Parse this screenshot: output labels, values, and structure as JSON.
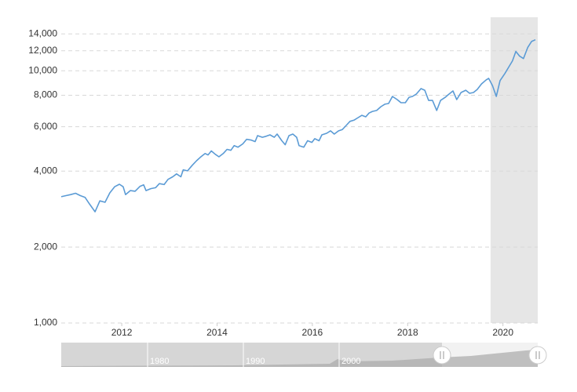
{
  "chart_data": {
    "type": "line",
    "log_scale": true,
    "grid": true,
    "color": "#5b9bd5",
    "highlight_x": [
      2019.74,
      2020.73
    ],
    "highlight_color": "#e6e6e6",
    "xlim": [
      2010.73,
      2020.73
    ],
    "xticks": [
      2012,
      2014,
      2016,
      2018,
      2020
    ],
    "ylim": [
      1000,
      16300
    ],
    "yticks": [
      {
        "value": 1000,
        "label": "1,000"
      },
      {
        "value": 2000,
        "label": "2,000"
      },
      {
        "value": 4000,
        "label": "4,000"
      },
      {
        "value": 6000,
        "label": "6,000"
      },
      {
        "value": 8000,
        "label": "8,000"
      },
      {
        "value": 10000,
        "label": "10,000"
      },
      {
        "value": 12000,
        "label": "12,000"
      },
      {
        "value": 14000,
        "label": "14,000"
      }
    ],
    "navigator_labels": [
      "1980",
      "1990",
      "2000"
    ],
    "x": [
      2010.73,
      2010.83,
      2010.93,
      2011.03,
      2011.13,
      2011.23,
      2011.32,
      2011.44,
      2011.54,
      2011.65,
      2011.75,
      2011.85,
      2011.95,
      2012.03,
      2012.08,
      2012.18,
      2012.28,
      2012.38,
      2012.46,
      2012.51,
      2012.61,
      2012.71,
      2012.79,
      2012.89,
      2012.97,
      2013.07,
      2013.15,
      2013.24,
      2013.29,
      2013.38,
      2013.48,
      2013.57,
      2013.66,
      2013.75,
      2013.81,
      2013.88,
      2013.96,
      2014.04,
      2014.13,
      2014.21,
      2014.29,
      2014.36,
      2014.44,
      2014.54,
      2014.62,
      2014.72,
      2014.8,
      2014.85,
      2014.95,
      2015.03,
      2015.11,
      2015.2,
      2015.26,
      2015.36,
      2015.43,
      2015.51,
      2015.59,
      2015.67,
      2015.72,
      2015.82,
      2015.9,
      2015.99,
      2016.05,
      2016.14,
      2016.2,
      2016.3,
      2016.38,
      2016.46,
      2016.55,
      2016.63,
      2016.71,
      2016.79,
      2016.88,
      2016.96,
      2017.04,
      2017.12,
      2017.19,
      2017.26,
      2017.35,
      2017.44,
      2017.52,
      2017.6,
      2017.68,
      2017.78,
      2017.86,
      2017.95,
      2018.03,
      2018.1,
      2018.18,
      2018.28,
      2018.36,
      2018.44,
      2018.52,
      2018.61,
      2018.69,
      2018.79,
      2018.85,
      2018.95,
      2019.03,
      2019.12,
      2019.22,
      2019.3,
      2019.38,
      2019.46,
      2019.55,
      2019.65,
      2019.7,
      2019.78,
      2019.86,
      2019.94,
      2020.04,
      2020.12,
      2020.2,
      2020.27,
      2020.35,
      2020.43,
      2020.52,
      2020.6,
      2020.68
    ],
    "values": [
      3167,
      3200,
      3230,
      3270,
      3200,
      3150,
      2970,
      2760,
      3050,
      3010,
      3280,
      3470,
      3550,
      3470,
      3230,
      3350,
      3330,
      3480,
      3530,
      3350,
      3410,
      3440,
      3570,
      3540,
      3710,
      3800,
      3900,
      3800,
      4050,
      4010,
      4220,
      4400,
      4560,
      4700,
      4640,
      4810,
      4670,
      4560,
      4700,
      4880,
      4840,
      5050,
      4980,
      5130,
      5350,
      5310,
      5240,
      5530,
      5450,
      5500,
      5570,
      5450,
      5610,
      5280,
      5090,
      5530,
      5610,
      5450,
      5050,
      4980,
      5280,
      5200,
      5380,
      5280,
      5570,
      5650,
      5780,
      5610,
      5780,
      5850,
      6070,
      6300,
      6380,
      6520,
      6660,
      6570,
      6800,
      6900,
      6960,
      7210,
      7370,
      7420,
      7910,
      7690,
      7470,
      7470,
      7850,
      7910,
      8080,
      8500,
      8370,
      7630,
      7630,
      6960,
      7630,
      7850,
      8030,
      8320,
      7690,
      8200,
      8370,
      8140,
      8200,
      8430,
      8870,
      9210,
      9330,
      8740,
      7910,
      9140,
      9750,
      10340,
      10950,
      11930,
      11430,
      11180,
      12380,
      13070,
      13270
    ]
  }
}
